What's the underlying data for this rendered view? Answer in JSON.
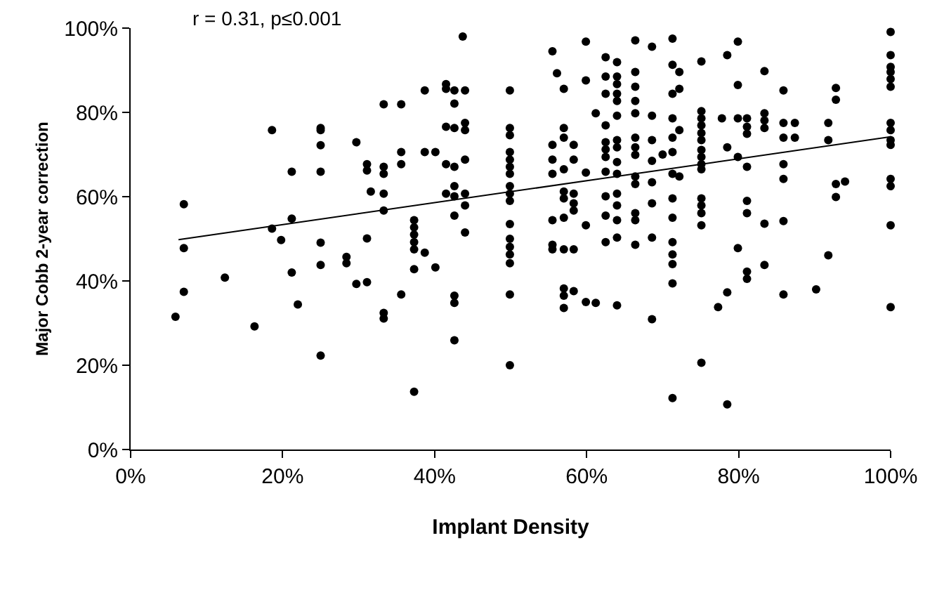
{
  "chart_data": {
    "type": "scatter",
    "title": "r = 0.31, p≤0.001",
    "xlabel": "Implant Density",
    "ylabel": "Major Cobb 2-year correction",
    "xlim": [
      0,
      100
    ],
    "ylim": [
      0,
      100
    ],
    "xticks": [
      {
        "value": 0,
        "label": "0%"
      },
      {
        "value": 20,
        "label": "20%"
      },
      {
        "value": 40,
        "label": "40%"
      },
      {
        "value": 60,
        "label": "60%"
      },
      {
        "value": 80,
        "label": "80%"
      },
      {
        "value": 100,
        "label": "100%"
      }
    ],
    "yticks": [
      {
        "value": 0,
        "label": "0%"
      },
      {
        "value": 20,
        "label": "20%"
      },
      {
        "value": 40,
        "label": "40%"
      },
      {
        "value": 60,
        "label": "60%"
      },
      {
        "value": 80,
        "label": "80%"
      },
      {
        "value": 100,
        "label": "100%"
      }
    ],
    "marker": "circle",
    "series": [
      {
        "color": "#000000",
        "x": [
          5.9,
          7.0,
          7.0,
          7.0,
          12.4,
          16.3,
          18.6,
          18.6,
          19.8,
          21.2,
          21.2,
          21.2,
          22.0,
          25.0,
          25.0,
          25.0,
          25.0,
          25.0,
          25.0,
          25.0,
          28.4,
          28.4,
          29.7,
          29.7,
          31.1,
          31.1,
          31.1,
          31.1,
          31.6,
          33.3,
          33.3,
          33.3,
          33.3,
          33.3,
          33.3,
          33.3,
          35.6,
          35.6,
          35.6,
          35.6,
          37.3,
          37.3,
          37.3,
          37.3,
          37.3,
          37.3,
          37.3,
          38.7,
          38.7,
          38.7,
          40.1,
          40.1,
          41.5,
          41.5,
          41.5,
          41.5,
          41.5,
          42.6,
          42.6,
          42.6,
          42.6,
          42.6,
          42.6,
          42.6,
          42.6,
          42.6,
          42.6,
          43.7,
          44.0,
          44.0,
          44.0,
          44.0,
          44.0,
          44.0,
          44.0,
          49.9,
          49.9,
          49.9,
          49.9,
          49.9,
          49.9,
          49.9,
          49.9,
          49.9,
          49.9,
          49.9,
          49.9,
          49.9,
          49.9,
          49.9,
          49.9,
          49.9,
          55.5,
          55.5,
          55.5,
          55.5,
          55.5,
          55.5,
          55.5,
          56.1,
          57.0,
          57.0,
          57.0,
          57.0,
          57.0,
          57.0,
          57.0,
          57.0,
          57.0,
          57.0,
          57.0,
          58.3,
          58.3,
          58.3,
          58.3,
          58.3,
          58.3,
          58.3,
          59.9,
          59.9,
          59.9,
          59.9,
          59.9,
          61.2,
          61.2,
          62.5,
          62.5,
          62.5,
          62.5,
          62.5,
          62.5,
          62.5,
          62.5,
          62.5,
          62.5,
          62.5,
          64.0,
          64.0,
          64.0,
          64.0,
          64.0,
          64.0,
          64.0,
          64.0,
          64.0,
          64.0,
          64.0,
          64.0,
          64.0,
          64.0,
          64.0,
          66.4,
          66.4,
          66.4,
          66.4,
          66.4,
          66.4,
          66.4,
          66.4,
          66.4,
          66.4,
          66.4,
          66.4,
          66.4,
          68.6,
          68.6,
          68.6,
          68.6,
          68.6,
          68.6,
          68.6,
          68.6,
          70.0,
          71.3,
          71.3,
          71.3,
          71.3,
          71.3,
          71.3,
          71.3,
          71.3,
          71.3,
          71.3,
          71.3,
          71.3,
          71.3,
          71.3,
          72.2,
          72.2,
          72.2,
          72.2,
          75.1,
          75.1,
          75.1,
          75.1,
          75.1,
          75.1,
          75.1,
          75.1,
          75.1,
          75.1,
          75.1,
          75.1,
          75.1,
          75.1,
          75.1,
          77.3,
          77.8,
          78.5,
          78.5,
          78.5,
          78.5,
          79.9,
          79.9,
          79.9,
          79.9,
          79.9,
          81.1,
          81.1,
          81.1,
          81.1,
          81.1,
          81.1,
          81.1,
          81.1,
          83.4,
          83.4,
          83.4,
          83.4,
          83.4,
          83.4,
          85.9,
          85.9,
          85.9,
          85.9,
          85.9,
          85.9,
          85.9,
          87.4,
          87.4,
          90.2,
          91.8,
          91.8,
          91.8,
          92.8,
          92.8,
          92.8,
          92.8,
          94.0,
          100,
          100,
          100,
          100,
          100,
          100,
          100,
          100,
          100,
          100,
          100,
          100,
          100,
          100
        ],
        "values": [
          31.5,
          58.2,
          47.8,
          37.4,
          40.8,
          29.2,
          75.8,
          52.4,
          49.7,
          65.9,
          54.8,
          42.0,
          34.4,
          76.3,
          75.8,
          72.2,
          65.9,
          49.1,
          43.8,
          22.3,
          45.7,
          44.2,
          72.9,
          39.3,
          67.7,
          66.2,
          50.1,
          39.7,
          61.2,
          81.9,
          67.1,
          65.4,
          60.7,
          56.7,
          32.4,
          31.1,
          81.9,
          70.6,
          67.7,
          36.8,
          54.4,
          52.7,
          51.0,
          49.2,
          47.5,
          42.8,
          13.7,
          85.2,
          70.6,
          46.7,
          70.6,
          43.2,
          86.7,
          85.6,
          76.6,
          67.7,
          60.7,
          85.2,
          82.1,
          76.3,
          67.1,
          62.5,
          60.1,
          55.5,
          36.5,
          34.8,
          25.9,
          98.0,
          85.2,
          77.5,
          75.8,
          68.8,
          60.7,
          57.9,
          51.5,
          85.2,
          76.3,
          74.6,
          70.6,
          68.8,
          67.1,
          65.4,
          62.5,
          60.7,
          59.0,
          53.5,
          50.0,
          48.1,
          46.3,
          44.2,
          36.8,
          20.0,
          94.5,
          72.3,
          68.8,
          65.4,
          54.4,
          48.6,
          47.5,
          89.3,
          85.6,
          76.3,
          74.0,
          66.5,
          61.2,
          59.6,
          55.0,
          47.5,
          38.2,
          36.5,
          33.6,
          72.3,
          68.8,
          60.7,
          58.4,
          56.7,
          47.5,
          37.6,
          96.8,
          87.6,
          65.7,
          53.2,
          35.0,
          79.8,
          34.8,
          93.1,
          88.5,
          84.4,
          76.9,
          72.9,
          71.2,
          69.4,
          65.9,
          60.1,
          55.5,
          49.2,
          91.9,
          88.5,
          86.7,
          84.4,
          82.7,
          79.2,
          73.4,
          71.7,
          68.2,
          65.4,
          60.7,
          57.9,
          54.4,
          50.3,
          34.2,
          97.1,
          89.6,
          86.1,
          82.7,
          79.8,
          74.0,
          71.7,
          69.9,
          64.8,
          63.0,
          56.1,
          54.4,
          48.6,
          95.6,
          79.2,
          73.4,
          68.5,
          63.4,
          58.4,
          50.3,
          30.9,
          70.0,
          97.5,
          91.3,
          84.4,
          78.6,
          74.0,
          70.6,
          65.4,
          59.6,
          55.0,
          49.2,
          46.3,
          44.0,
          39.4,
          12.2,
          89.6,
          85.6,
          75.8,
          64.8,
          92.1,
          80.3,
          78.6,
          76.9,
          75.1,
          73.4,
          71.1,
          69.4,
          67.7,
          66.5,
          59.6,
          57.9,
          56.1,
          53.2,
          20.6,
          33.8,
          78.6,
          93.6,
          71.7,
          37.3,
          10.7,
          96.8,
          86.5,
          78.6,
          69.4,
          47.8,
          78.6,
          76.6,
          74.9,
          67.1,
          59.0,
          56.1,
          42.2,
          40.5,
          89.8,
          79.8,
          78.1,
          76.3,
          53.6,
          43.8,
          85.2,
          77.5,
          74.0,
          67.7,
          64.2,
          54.2,
          36.8,
          77.5,
          74.0,
          38.0,
          77.5,
          73.4,
          46.1,
          85.8,
          83.0,
          63.0,
          59.9,
          63.6,
          99.1,
          93.6,
          90.8,
          89.6,
          87.9,
          86.1,
          77.5,
          75.8,
          73.4,
          72.3,
          64.2,
          62.5,
          53.2,
          33.8
        ]
      },
      {
        "type": "line",
        "color": "#000000",
        "line_style": "solid",
        "marker": "none",
        "x": [
          6.3,
          100
        ],
        "values": [
          49.8,
          74.2
        ]
      }
    ]
  }
}
